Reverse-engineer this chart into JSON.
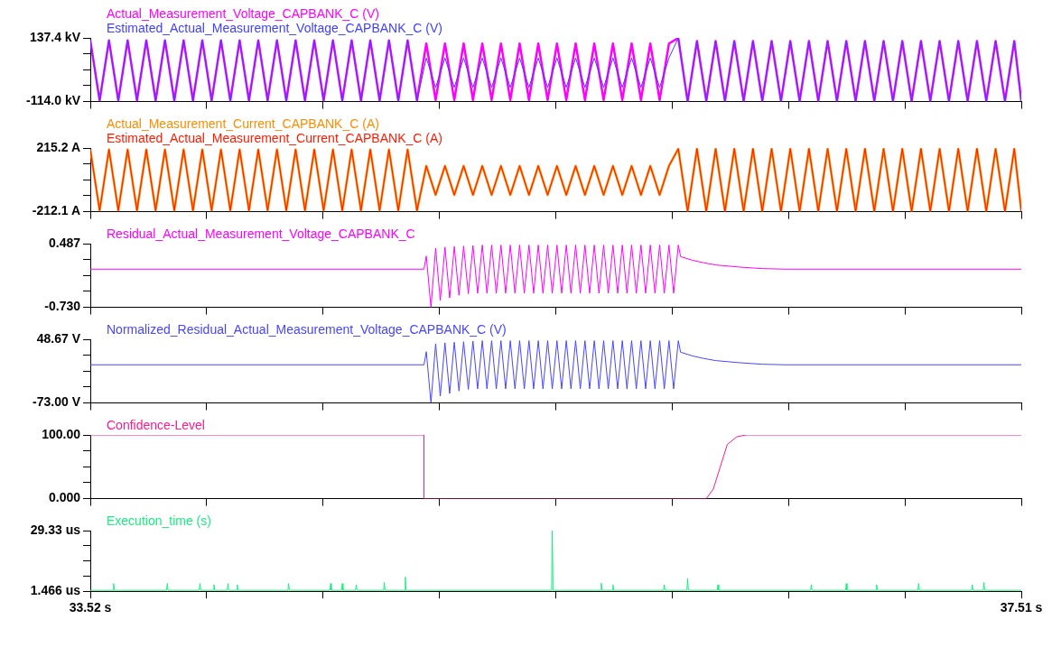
{
  "chart_data": [
    {
      "type": "line",
      "tick_labels": "y",
      "marker": "none",
      "grid": false,
      "xlim": [
        33.52,
        37.51
      ],
      "xticks": [
        {
          "value": 33.52,
          "label": null
        },
        {
          "value": 34.019,
          "label": null
        },
        {
          "value": 34.518,
          "label": null
        },
        {
          "value": 35.016,
          "label": null
        },
        {
          "value": 35.515,
          "label": null
        },
        {
          "value": 36.014,
          "label": null
        },
        {
          "value": 36.513,
          "label": null
        },
        {
          "value": 37.011,
          "label": null
        },
        {
          "value": 37.51,
          "label": null
        }
      ],
      "ylim": [
        -114.0,
        137.4
      ],
      "yticks": [
        {
          "value": -114.0,
          "label": "-114.0 kV"
        },
        {
          "value": -51.15,
          "label": null
        },
        {
          "value": 11.7,
          "label": null
        },
        {
          "value": 74.55,
          "label": null
        },
        {
          "value": 137.4,
          "label": "137.4 kV"
        }
      ],
      "x": [
        33.52,
        33.56,
        33.6,
        33.64,
        33.68,
        33.72,
        33.76,
        33.8,
        33.84,
        33.88,
        33.92,
        33.96,
        34,
        34.04,
        34.08,
        34.12,
        34.16,
        34.2,
        34.24,
        34.28,
        34.32,
        34.36,
        34.4,
        34.44,
        34.48,
        34.52,
        34.56,
        34.6,
        34.64,
        34.68,
        34.72,
        34.76,
        34.8,
        34.84,
        34.88,
        34.92,
        34.96,
        35,
        35.04,
        35.08,
        35.12,
        35.16,
        35.2,
        35.24,
        35.28,
        35.32,
        35.36,
        35.4,
        35.44,
        35.48,
        35.52,
        35.56,
        35.6,
        35.64,
        35.68,
        35.72,
        35.76,
        35.8,
        35.84,
        35.88,
        35.92,
        35.96,
        36,
        36.04,
        36.08,
        36.12,
        36.16,
        36.2,
        36.24,
        36.28,
        36.32,
        36.36,
        36.4,
        36.44,
        36.48,
        36.52,
        36.56,
        36.6,
        36.64,
        36.68,
        36.72,
        36.76,
        36.8,
        36.84,
        36.88,
        36.92,
        36.96,
        37,
        37.04,
        37.08,
        37.12,
        37.16,
        37.2,
        37.24,
        37.28,
        37.32,
        37.36,
        37.4,
        37.44,
        37.48,
        37.51
      ],
      "series": [
        {
          "name": "Actual_Measurement_Voltage_CAPBANK_C (V)",
          "color": "#ff00ff",
          "values": [
            128,
            -110,
            128,
            -110,
            128,
            -110,
            128,
            -110,
            128,
            -110,
            128,
            -110,
            128,
            -110,
            128,
            -110,
            128,
            -110,
            128,
            -110,
            128,
            -110,
            128,
            -110,
            128,
            -110,
            128,
            -110,
            128,
            -110,
            128,
            -110,
            128,
            -110,
            128,
            -110,
            115,
            -108,
            115,
            -108,
            115,
            -108,
            115,
            -108,
            115,
            -108,
            115,
            -108,
            115,
            -108,
            115,
            -108,
            115,
            -108,
            115,
            -108,
            115,
            -108,
            115,
            -108,
            115,
            -108,
            115,
            137,
            -114,
            125,
            -112,
            125,
            -112,
            125,
            -112,
            125,
            -112,
            125,
            -112,
            125,
            -112,
            125,
            -112,
            125,
            -112,
            125,
            -112,
            125,
            -112,
            125,
            -112,
            125,
            -112,
            125,
            -112,
            125,
            -112,
            125,
            -112,
            125,
            -112,
            125,
            -112,
            125,
            -112
          ]
        },
        {
          "name": "Estimated_Actual_Measurement_Voltage_CAPBANK_C (V)",
          "color": "#4040ff",
          "values": [
            128,
            -110,
            128,
            -110,
            128,
            -110,
            128,
            -110,
            128,
            -110,
            128,
            -110,
            128,
            -110,
            128,
            -110,
            128,
            -110,
            128,
            -110,
            128,
            -110,
            128,
            -110,
            128,
            -110,
            128,
            -110,
            128,
            -110,
            128,
            -110,
            128,
            -110,
            128,
            -110,
            58,
            -58,
            58,
            -58,
            58,
            -58,
            58,
            -58,
            58,
            -58,
            58,
            -58,
            58,
            -58,
            58,
            -58,
            58,
            -58,
            58,
            -58,
            58,
            -58,
            58,
            -58,
            58,
            -58,
            58,
            137,
            -114,
            125,
            -112,
            125,
            -112,
            125,
            -112,
            125,
            -112,
            125,
            -112,
            125,
            -112,
            125,
            -112,
            125,
            -112,
            125,
            -112,
            125,
            -112,
            125,
            -112,
            125,
            -112,
            125,
            -112,
            125,
            -112,
            125,
            -112,
            125,
            -112,
            125,
            -112,
            125,
            -112
          ]
        }
      ]
    },
    {
      "type": "line",
      "tick_labels": "y",
      "marker": "none",
      "grid": false,
      "xlim": [
        33.52,
        37.51
      ],
      "xticks": [
        {
          "value": 33.52,
          "label": null
        },
        {
          "value": 34.019,
          "label": null
        },
        {
          "value": 34.518,
          "label": null
        },
        {
          "value": 35.016,
          "label": null
        },
        {
          "value": 35.515,
          "label": null
        },
        {
          "value": 36.014,
          "label": null
        },
        {
          "value": 36.513,
          "label": null
        },
        {
          "value": 37.011,
          "label": null
        },
        {
          "value": 37.51,
          "label": null
        }
      ],
      "ylim": [
        -212.1,
        215.2
      ],
      "yticks": [
        {
          "value": -212.1,
          "label": "-212.1 A"
        },
        {
          "value": -105.28,
          "label": null
        },
        {
          "value": 1.55,
          "label": null
        },
        {
          "value": 108.38,
          "label": null
        },
        {
          "value": 215.2,
          "label": "215.2 A"
        }
      ],
      "x": [
        33.52,
        33.56,
        33.6,
        33.64,
        33.68,
        33.72,
        33.76,
        33.8,
        33.84,
        33.88,
        33.92,
        33.96,
        34,
        34.04,
        34.08,
        34.12,
        34.16,
        34.2,
        34.24,
        34.28,
        34.32,
        34.36,
        34.4,
        34.44,
        34.48,
        34.52,
        34.56,
        34.6,
        34.64,
        34.68,
        34.72,
        34.76,
        34.8,
        34.84,
        34.88,
        34.92,
        34.96,
        35,
        35.04,
        35.08,
        35.12,
        35.16,
        35.2,
        35.24,
        35.28,
        35.32,
        35.36,
        35.4,
        35.44,
        35.48,
        35.52,
        35.56,
        35.6,
        35.64,
        35.68,
        35.72,
        35.76,
        35.8,
        35.84,
        35.88,
        35.92,
        35.96,
        36,
        36.04,
        36.08,
        36.12,
        36.16,
        36.2,
        36.24,
        36.28,
        36.32,
        36.36,
        36.4,
        36.44,
        36.48,
        36.52,
        36.56,
        36.6,
        36.64,
        36.68,
        36.72,
        36.76,
        36.8,
        36.84,
        36.88,
        36.92,
        36.96,
        37,
        37.04,
        37.08,
        37.12,
        37.16,
        37.2,
        37.24,
        37.28,
        37.32,
        37.36,
        37.4,
        37.44,
        37.48,
        37.51
      ],
      "series": [
        {
          "name": "Actual_Measurement_Current_CAPBANK_C (A)",
          "color": "#ff8c00",
          "values": [
            205,
            -205,
            205,
            -205,
            205,
            -205,
            205,
            -205,
            205,
            -205,
            205,
            -205,
            205,
            -205,
            205,
            -205,
            205,
            -205,
            205,
            -205,
            205,
            -205,
            205,
            -205,
            205,
            -205,
            205,
            -205,
            205,
            -205,
            205,
            -205,
            205,
            -205,
            205,
            -205,
            95,
            -100,
            95,
            -100,
            95,
            -100,
            95,
            -100,
            95,
            -100,
            95,
            -100,
            95,
            -100,
            95,
            -100,
            95,
            -100,
            95,
            -100,
            95,
            -100,
            95,
            -100,
            95,
            -100,
            95,
            210,
            -210,
            210,
            -210,
            210,
            -210,
            210,
            -210,
            210,
            -210,
            210,
            -210,
            210,
            -210,
            210,
            -210,
            210,
            -210,
            210,
            -210,
            210,
            -210,
            210,
            -210,
            210,
            -210,
            210,
            -210,
            210,
            -210,
            210,
            -210,
            210,
            -210,
            210,
            -210,
            210,
            -210
          ]
        },
        {
          "name": "Estimated_Actual_Measurement_Current_CAPBANK_C (A)",
          "color": "#ff1a00",
          "values": [
            205,
            -205,
            205,
            -205,
            205,
            -205,
            205,
            -205,
            205,
            -205,
            205,
            -205,
            205,
            -205,
            205,
            -205,
            205,
            -205,
            205,
            -205,
            205,
            -205,
            205,
            -205,
            205,
            -205,
            205,
            -205,
            205,
            -205,
            205,
            -205,
            205,
            -205,
            205,
            -205,
            95,
            -100,
            95,
            -100,
            95,
            -100,
            95,
            -100,
            95,
            -100,
            95,
            -100,
            95,
            -100,
            95,
            -100,
            95,
            -100,
            95,
            -100,
            95,
            -100,
            95,
            -100,
            95,
            -100,
            95,
            210,
            -210,
            210,
            -210,
            210,
            -210,
            210,
            -210,
            210,
            -210,
            210,
            -210,
            210,
            -210,
            210,
            -210,
            210,
            -210,
            210,
            -210,
            210,
            -210,
            210,
            -210,
            210,
            -210,
            210,
            -210,
            210,
            -210,
            210,
            -210,
            210,
            -210,
            210,
            -210,
            210,
            -210
          ]
        }
      ]
    },
    {
      "type": "line",
      "tick_labels": "y",
      "marker": "none",
      "grid": false,
      "xlim": [
        33.52,
        37.51
      ],
      "xticks": [
        {
          "value": 33.52,
          "label": null
        },
        {
          "value": 34.019,
          "label": null
        },
        {
          "value": 34.518,
          "label": null
        },
        {
          "value": 35.016,
          "label": null
        },
        {
          "value": 35.515,
          "label": null
        },
        {
          "value": 36.014,
          "label": null
        },
        {
          "value": 36.513,
          "label": null
        },
        {
          "value": 37.011,
          "label": null
        },
        {
          "value": 37.51,
          "label": null
        }
      ],
      "ylim": [
        -0.73,
        0.487
      ],
      "yticks": [
        {
          "value": -0.73,
          "label": "-0.730"
        },
        {
          "value": -0.426,
          "label": null
        },
        {
          "value": -0.122,
          "label": null
        },
        {
          "value": 0.183,
          "label": null
        },
        0.487
      ],
      "x": [
        33.52,
        34.95,
        34.96,
        34.98,
        35.0,
        35.02,
        35.04,
        35.06,
        35.08,
        35.1,
        35.12,
        35.14,
        35.16,
        35.18,
        35.2,
        35.22,
        35.24,
        35.26,
        35.28,
        35.3,
        35.32,
        35.34,
        35.36,
        35.38,
        35.4,
        35.42,
        35.44,
        35.46,
        35.48,
        35.5,
        35.52,
        35.54,
        35.56,
        35.58,
        35.6,
        35.62,
        35.64,
        35.66,
        35.68,
        35.7,
        35.72,
        35.74,
        35.76,
        35.78,
        35.8,
        35.82,
        35.84,
        35.86,
        35.88,
        35.9,
        35.92,
        35.94,
        35.96,
        35.98,
        36.0,
        36.02,
        36.04,
        36.05,
        36.1,
        36.15,
        36.2,
        36.3,
        36.4,
        36.5,
        37.51
      ],
      "series": [
        {
          "name": "Residual_Actual_Measurement_Voltage_CAPBANK_C",
          "color": "#ff00ff",
          "values": [
            0,
            0,
            0.25,
            -0.73,
            0.4,
            -0.6,
            0.42,
            -0.55,
            0.43,
            -0.5,
            0.44,
            -0.47,
            0.45,
            -0.46,
            0.46,
            -0.46,
            0.46,
            -0.46,
            0.46,
            -0.46,
            0.46,
            -0.46,
            0.46,
            -0.46,
            0.46,
            -0.46,
            0.46,
            -0.46,
            0.46,
            -0.46,
            0.46,
            -0.46,
            0.46,
            -0.46,
            0.46,
            -0.46,
            0.46,
            -0.46,
            0.46,
            -0.46,
            0.46,
            -0.46,
            0.46,
            -0.46,
            0.46,
            -0.46,
            0.46,
            -0.46,
            0.46,
            -0.46,
            0.46,
            -0.46,
            0.46,
            -0.46,
            0.46,
            -0.46,
            0.46,
            0.24,
            0.17,
            0.12,
            0.08,
            0.04,
            0.01,
            0,
            0
          ]
        }
      ]
    },
    {
      "type": "line",
      "tick_labels": "y",
      "marker": "none",
      "grid": false,
      "xlim": [
        33.52,
        37.51
      ],
      "xticks": [
        {
          "value": 33.52,
          "label": null
        },
        {
          "value": 34.019,
          "label": null
        },
        {
          "value": 34.518,
          "label": null
        },
        {
          "value": 35.016,
          "label": null
        },
        {
          "value": 35.515,
          "label": null
        },
        {
          "value": 36.014,
          "label": null
        },
        {
          "value": 36.513,
          "label": null
        },
        {
          "value": 37.011,
          "label": null
        },
        {
          "value": 37.51,
          "label": null
        }
      ],
      "ylim": [
        -73.0,
        48.67
      ],
      "yticks": [
        {
          "value": -73.0,
          "label": "-73.00 V"
        },
        {
          "value": -42.58,
          "label": null
        },
        {
          "value": -12.17,
          "label": null
        },
        {
          "value": 18.25,
          "label": null
        },
        {
          "value": 48.67,
          "label": "48.67 V"
        }
      ],
      "x": [
        33.52,
        34.95,
        34.96,
        34.98,
        35.0,
        35.02,
        35.04,
        35.06,
        35.08,
        35.1,
        35.12,
        35.14,
        35.16,
        35.18,
        35.2,
        35.22,
        35.24,
        35.26,
        35.28,
        35.3,
        35.32,
        35.34,
        35.36,
        35.38,
        35.4,
        35.42,
        35.44,
        35.46,
        35.48,
        35.5,
        35.52,
        35.54,
        35.56,
        35.58,
        35.6,
        35.62,
        35.64,
        35.66,
        35.68,
        35.7,
        35.72,
        35.74,
        35.76,
        35.78,
        35.8,
        35.82,
        35.84,
        35.86,
        35.88,
        35.9,
        35.92,
        35.94,
        35.96,
        35.98,
        36.0,
        36.02,
        36.04,
        36.05,
        36.1,
        36.15,
        36.2,
        36.3,
        36.4,
        36.5,
        37.51
      ],
      "series": [
        {
          "name": "Normalized_Residual_Actual_Measurement_Voltage_CAPBANK_C (V)",
          "color": "#4646ff",
          "values": [
            0,
            0,
            25,
            -73,
            40,
            -60,
            42,
            -55,
            43,
            -50,
            44,
            -47,
            45,
            -46,
            46,
            -46,
            46,
            -46,
            46,
            -46,
            46,
            -46,
            46,
            -46,
            46,
            -46,
            46,
            -46,
            46,
            -46,
            46,
            -46,
            46,
            -46,
            46,
            -46,
            46,
            -46,
            46,
            -46,
            46,
            -46,
            46,
            -46,
            46,
            -46,
            46,
            -46,
            46,
            -46,
            46,
            -46,
            46,
            -46,
            46,
            -46,
            46,
            24,
            17,
            12,
            8,
            4,
            1,
            0,
            0
          ]
        }
      ]
    },
    {
      "type": "line",
      "tick_labels": "y",
      "marker": "none",
      "grid": false,
      "xlim": [
        33.52,
        37.51
      ],
      "xticks": [
        {
          "value": 33.52,
          "label": null
        },
        {
          "value": 34.019,
          "label": null
        },
        {
          "value": 34.518,
          "label": null
        },
        {
          "value": 35.016,
          "label": null
        },
        {
          "value": 35.515,
          "label": null
        },
        {
          "value": 36.014,
          "label": null
        },
        {
          "value": 36.513,
          "label": null
        },
        {
          "value": 37.011,
          "label": null
        },
        {
          "value": 37.51,
          "label": null
        }
      ],
      "ylim": [
        0,
        100
      ],
      "yticks": [
        {
          "value": 0,
          "label": "0.000"
        },
        {
          "value": 25,
          "label": null
        },
        {
          "value": 50,
          "label": null
        },
        {
          "value": 75,
          "label": null
        },
        {
          "value": 100,
          "label": "100.00"
        }
      ],
      "x": [
        33.52,
        34.95,
        34.95,
        36.16,
        36.19,
        36.22,
        36.25,
        36.29,
        36.33,
        37.51
      ],
      "series": [
        {
          "name": "Confidence-Level",
          "color": "#ff1a8c",
          "values": [
            100,
            100,
            0,
            0,
            15,
            50,
            85,
            97,
            100,
            100
          ]
        }
      ]
    },
    {
      "type": "line",
      "marker": "none",
      "grid": false,
      "xlim": [
        33.52,
        37.51
      ],
      "xticks": [
        {
          "value": 33.52,
          "label": "33.52 s"
        },
        {
          "value": 34.019,
          "label": null
        },
        {
          "value": 34.518,
          "label": null
        },
        {
          "value": 35.016,
          "label": null
        },
        {
          "value": 35.515,
          "label": null
        },
        {
          "value": 36.014,
          "label": null
        },
        {
          "value": 36.513,
          "label": null
        },
        {
          "value": 37.011,
          "label": null
        },
        {
          "value": 37.51,
          "label": "37.51 s"
        }
      ],
      "ylim": [
        1.466,
        29.33
      ],
      "yticks": [
        {
          "value": 1.466,
          "label": "1.466 us"
        },
        {
          "value": 8.432,
          "label": null
        },
        {
          "value": 15.398,
          "label": null
        },
        {
          "value": 22.364,
          "label": null
        },
        {
          "value": 29.33,
          "label": "29.33 us"
        }
      ],
      "x": [
        33.52,
        33.617,
        33.62,
        33.623,
        33.847,
        33.85,
        33.853,
        33.987,
        33.99,
        33.993,
        34.047,
        34.05,
        34.053,
        34.107,
        34.11,
        34.113,
        34.147,
        34.15,
        34.153,
        34.367,
        34.37,
        34.373,
        34.547,
        34.55,
        34.553,
        34.597,
        34.6,
        34.603,
        34.657,
        34.66,
        34.663,
        34.777,
        34.78,
        34.783,
        34.867,
        34.87,
        34.873,
        35.497,
        35.5,
        35.503,
        35.707,
        35.71,
        35.713,
        35.757,
        35.76,
        35.763,
        35.977,
        35.98,
        35.983,
        36.077,
        36.08,
        36.083,
        36.207,
        36.21,
        36.213,
        36.607,
        36.61,
        36.613,
        36.757,
        36.76,
        36.763,
        36.887,
        36.89,
        36.893,
        37.067,
        37.07,
        37.073,
        37.297,
        37.3,
        37.303,
        37.347,
        37.35,
        37.353,
        37.51
      ],
      "series": [
        {
          "name": "Execution_time (s)",
          "color": "#1aee80",
          "values": [
            1.9,
            1.9,
            5.0,
            1.9,
            1.9,
            5.0,
            1.9,
            1.9,
            5.0,
            1.9,
            1.9,
            4.5,
            1.9,
            1.9,
            5.0,
            1.9,
            1.9,
            4.5,
            1.9,
            1.9,
            5.0,
            1.9,
            1.9,
            5.0,
            1.9,
            1.9,
            5.0,
            1.9,
            1.9,
            4.5,
            1.9,
            1.9,
            5.5,
            1.9,
            1.9,
            8.0,
            1.9,
            1.9,
            29.3,
            1.9,
            1.9,
            5.2,
            1.9,
            1.9,
            4.5,
            1.9,
            1.9,
            4.5,
            1.9,
            1.9,
            7.3,
            1.9,
            1.9,
            4.5,
            1.9,
            1.9,
            4.5,
            1.9,
            1.9,
            5.0,
            1.9,
            1.9,
            4.5,
            1.9,
            1.9,
            5.0,
            1.9,
            1.9,
            4.5,
            1.9,
            1.9,
            5.5,
            1.9,
            1.9
          ]
        }
      ]
    }
  ]
}
